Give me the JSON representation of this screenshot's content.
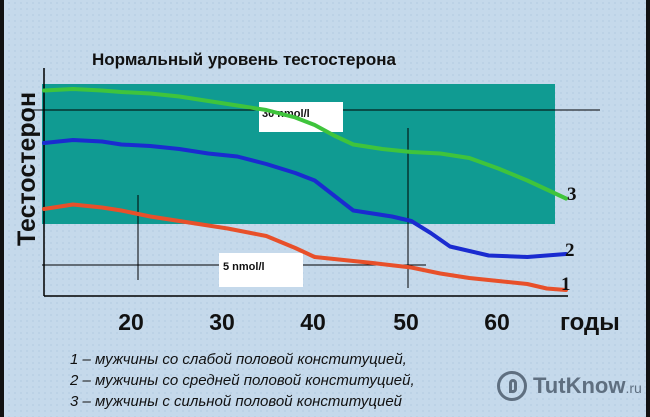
{
  "chart_data": {
    "type": "line",
    "title": "Нормальный уровень тестостерона",
    "ylabel": "Тестостерон",
    "xlabel": "годы",
    "xlim": [
      12,
      66
    ],
    "x_ticks": [
      "20",
      "30",
      "40",
      "50",
      "60"
    ],
    "normal_range_label": "30 nmol/l",
    "low_level_label": "5 nmol/l",
    "band_color": "#109b92",
    "series": [
      {
        "name": "1",
        "color": "#e8502a",
        "x": [
          12,
          15,
          18,
          20,
          23,
          26,
          29,
          31,
          35,
          38,
          40,
          43,
          46,
          50,
          53,
          56,
          59,
          62,
          64,
          66
        ],
        "y": [
          0.58,
          0.61,
          0.59,
          0.57,
          0.53,
          0.5,
          0.47,
          0.45,
          0.4,
          0.32,
          0.26,
          0.24,
          0.22,
          0.19,
          0.15,
          0.12,
          0.1,
          0.08,
          0.05,
          0.04
        ]
      },
      {
        "name": "2",
        "color": "#1a2bd0",
        "x": [
          12,
          15,
          18,
          20,
          23,
          26,
          29,
          32,
          35,
          38,
          40,
          42,
          44,
          46,
          48,
          50,
          52,
          54,
          58,
          62,
          66
        ],
        "y": [
          1.02,
          1.04,
          1.03,
          1.01,
          1.0,
          0.98,
          0.95,
          0.93,
          0.88,
          0.82,
          0.77,
          0.67,
          0.57,
          0.55,
          0.53,
          0.5,
          0.42,
          0.33,
          0.27,
          0.26,
          0.28
        ]
      },
      {
        "name": "3",
        "color": "#3fc43c",
        "x": [
          12,
          15,
          18,
          20,
          23,
          26,
          29,
          32,
          35,
          38,
          40,
          42,
          44,
          47,
          50,
          53,
          56,
          59,
          62,
          64,
          66
        ],
        "y": [
          1.37,
          1.38,
          1.37,
          1.36,
          1.35,
          1.33,
          1.3,
          1.27,
          1.24,
          1.19,
          1.14,
          1.07,
          1.01,
          0.98,
          0.96,
          0.95,
          0.92,
          0.85,
          0.77,
          0.71,
          0.65
        ]
      }
    ],
    "legend": [
      "1 – мужчины со слабой половой конституцией,",
      "2 – мужчины со средней половой конституцией,",
      "3 – мужчины с сильной половой конституцией"
    ]
  },
  "watermark": {
    "name": "TutKnow",
    "suffix": ".ru"
  }
}
